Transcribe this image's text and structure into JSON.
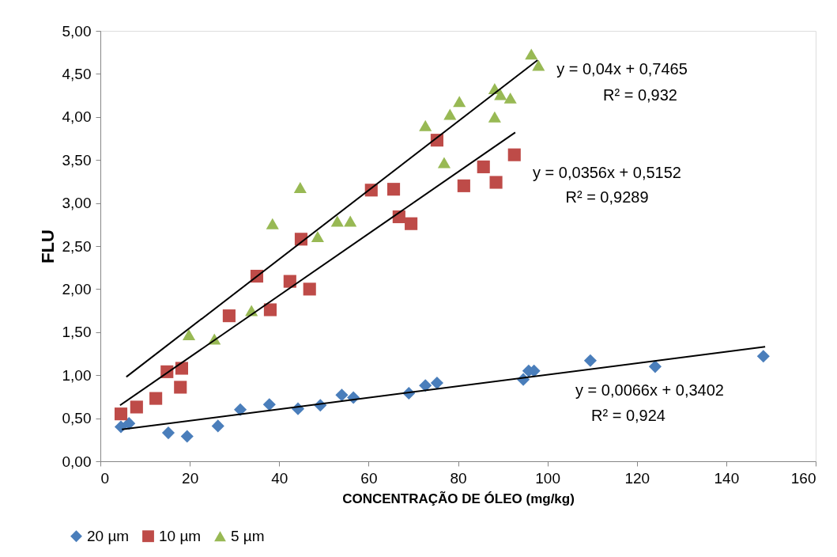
{
  "chart_data": {
    "type": "scatter",
    "xlabel": "CONCENTRAÇÃO DE ÓLEO  (mg/kg)",
    "ylabel": "FLU",
    "xlim": [
      0,
      160
    ],
    "xticks": [
      0,
      20,
      40,
      60,
      80,
      100,
      120,
      140,
      160
    ],
    "ylim": [
      0,
      5
    ],
    "yticks": [
      {
        "value": 0,
        "label": "0,00"
      },
      {
        "value": 0.5,
        "label": "0,50"
      },
      {
        "value": 1,
        "label": "1,00"
      },
      {
        "value": 1.5,
        "label": "1,50"
      },
      {
        "value": 2,
        "label": "2,00"
      },
      {
        "value": 2.5,
        "label": "2,50"
      },
      {
        "value": 3,
        "label": "3,00"
      },
      {
        "value": 3.5,
        "label": "3,50"
      },
      {
        "value": 4,
        "label": "4,00"
      },
      {
        "value": 4.5,
        "label": "4,50"
      },
      {
        "value": 5,
        "label": "5,00"
      }
    ],
    "grid": false,
    "legend": "bottom",
    "series": [
      {
        "name": "20 µm",
        "color": "#4a7ebb",
        "marker": "diamond",
        "x": [
          4.6,
          6.4,
          15.2,
          19.4,
          26.3,
          31.3,
          37.8,
          44.2,
          49.2,
          54,
          56.6,
          69,
          72.7,
          75.3,
          94.6,
          95.8,
          97,
          109.6,
          124.1,
          148.3
        ],
        "values": [
          0.4,
          0.44,
          0.33,
          0.29,
          0.41,
          0.6,
          0.66,
          0.61,
          0.65,
          0.77,
          0.74,
          0.79,
          0.88,
          0.91,
          0.95,
          1.05,
          1.05,
          1.17,
          1.1,
          1.22
        ]
      },
      {
        "name": "10 µm",
        "color": "#be4b48",
        "marker": "square",
        "x": [
          4.6,
          8.1,
          12.4,
          14.9,
          18.2,
          17.9,
          28.8,
          35,
          38,
          42.4,
          44.9,
          46.8,
          60.6,
          65.6,
          66.8,
          69.5,
          75.3,
          81.3,
          85.7,
          88.5,
          92.6
        ],
        "values": [
          0.55,
          0.63,
          0.73,
          1.04,
          1.08,
          0.86,
          1.69,
          2.15,
          1.76,
          2.09,
          2.58,
          2.0,
          3.15,
          3.16,
          2.84,
          2.76,
          3.73,
          3.2,
          3.42,
          3.24,
          3.56
        ]
      },
      {
        "name": "5 µm",
        "color": "#98b954",
        "marker": "triangle",
        "x": [
          19.8,
          25.5,
          33.8,
          38.5,
          44.7,
          48.6,
          53,
          55.9,
          72.7,
          76.9,
          78.2,
          80.3,
          88.2,
          88.2,
          89.5,
          91.7,
          96.4,
          98
        ],
        "values": [
          1.47,
          1.42,
          1.75,
          2.76,
          3.18,
          2.61,
          2.79,
          2.79,
          3.9,
          3.47,
          4.03,
          4.18,
          4.33,
          4.0,
          4.26,
          4.22,
          4.73,
          4.6
        ]
      },
      {
        "type": "line",
        "color": "#000000",
        "line_style": "solid",
        "x": [
          5.8,
          97.8
        ],
        "values": [
          0.98,
          4.66
        ]
      },
      {
        "type": "line",
        "color": "#000000",
        "line_style": "solid",
        "x": [
          4.4,
          92.8
        ],
        "values": [
          0.65,
          3.82
        ]
      },
      {
        "type": "line",
        "color": "#000000",
        "line_style": "solid",
        "x": [
          4.8,
          148.7
        ],
        "values": [
          0.37,
          1.33
        ]
      }
    ],
    "annotations": [
      "y = 0,04x + 0,7465",
      "R² = 0,932",
      "y = 0,0356x + 0,5152",
      "R² = 0,9289",
      "y = 0,0066x + 0,3402",
      "R² = 0,924"
    ]
  }
}
